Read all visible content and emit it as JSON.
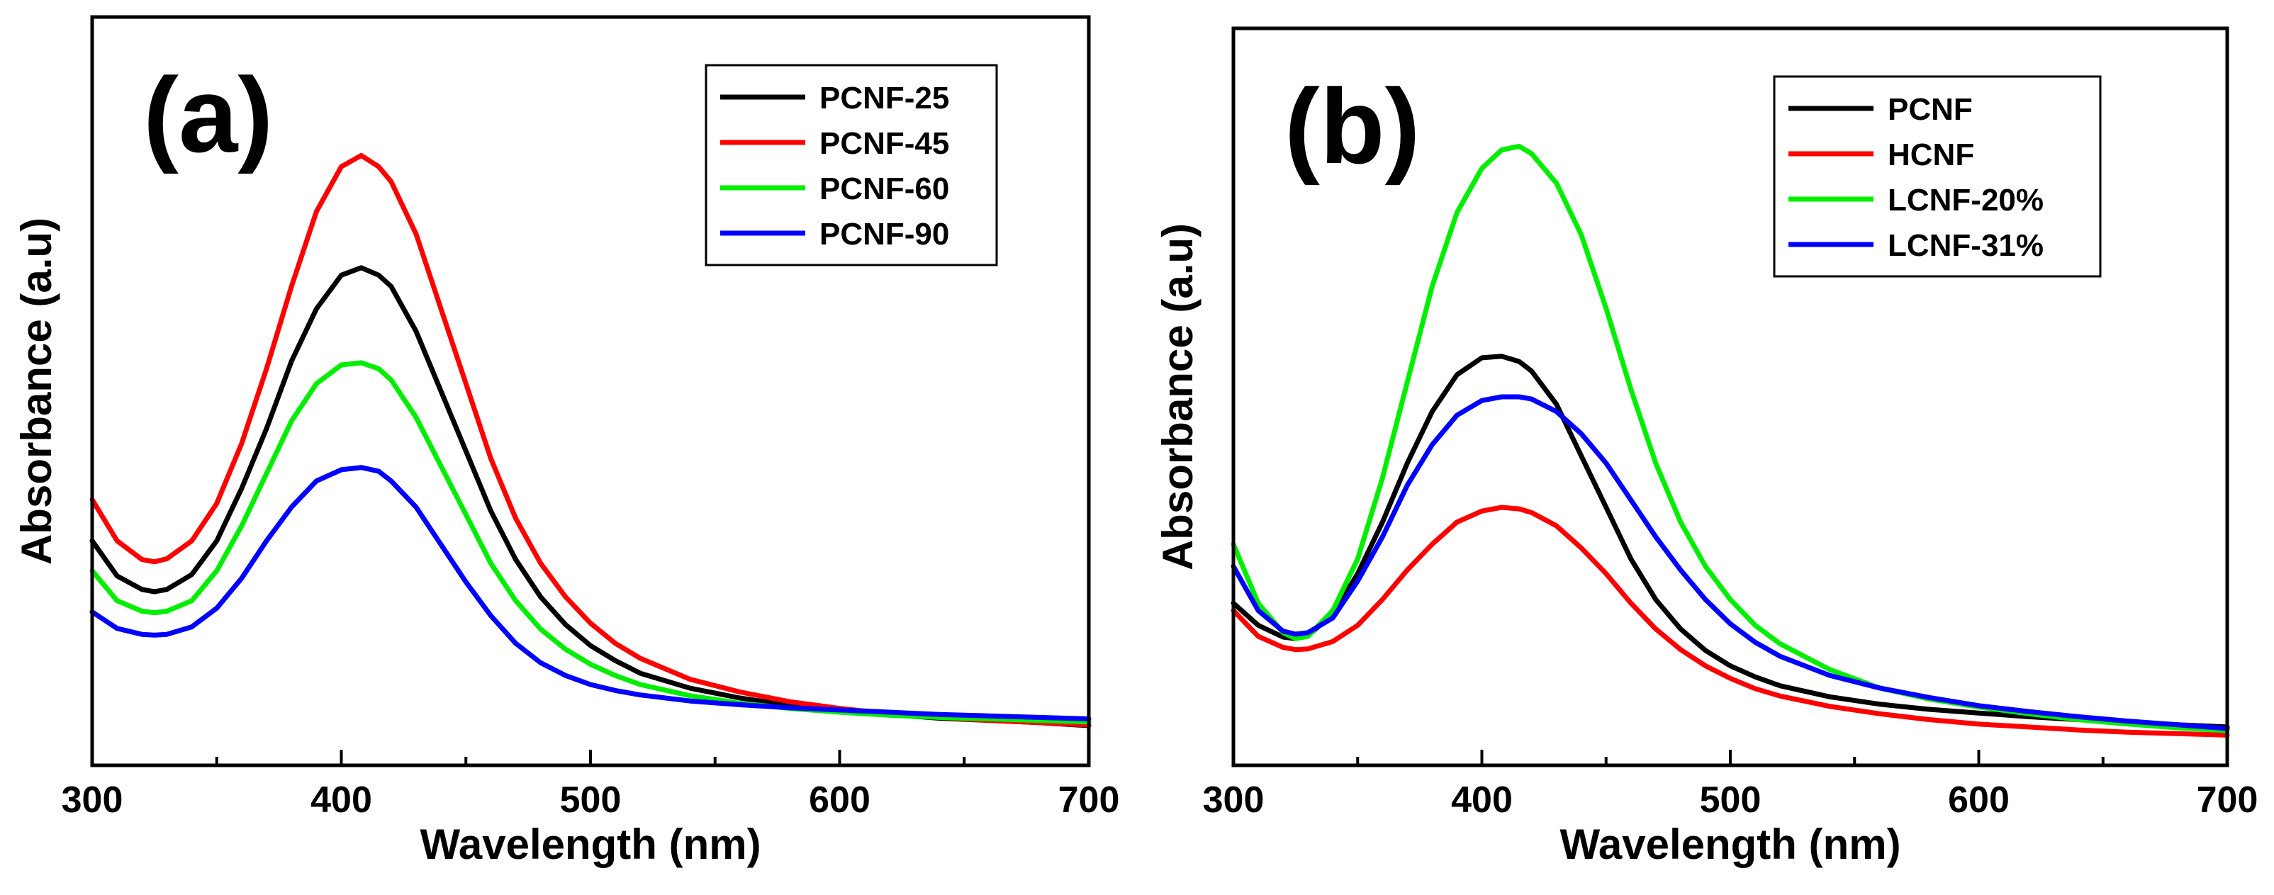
{
  "chart_data": [
    {
      "type": "line",
      "panel_label": "(a)",
      "xlabel": "Wavelength (nm)",
      "ylabel": "Absorbance (a.u)",
      "xlim": [
        300,
        700
      ],
      "ylim": [
        0,
        1
      ],
      "xticks": [
        300,
        400,
        500,
        600,
        700
      ],
      "y_tick_labels": false,
      "grid": false,
      "legend_position": "top-right",
      "x": [
        300,
        310,
        320,
        325,
        330,
        340,
        350,
        360,
        370,
        380,
        390,
        400,
        408,
        415,
        420,
        430,
        440,
        450,
        460,
        470,
        480,
        490,
        500,
        510,
        520,
        540,
        560,
        580,
        600,
        620,
        640,
        660,
        680,
        700
      ],
      "series": [
        {
          "name": "PCNF-25",
          "color": "#000000",
          "values": [
            0.3,
            0.253,
            0.235,
            0.232,
            0.235,
            0.255,
            0.3,
            0.37,
            0.45,
            0.54,
            0.61,
            0.655,
            0.665,
            0.655,
            0.64,
            0.58,
            0.5,
            0.42,
            0.34,
            0.275,
            0.225,
            0.188,
            0.16,
            0.14,
            0.123,
            0.103,
            0.09,
            0.08,
            0.073,
            0.068,
            0.063,
            0.06,
            0.057,
            0.053
          ]
        },
        {
          "name": "PCNF-45",
          "color": "#ff0000",
          "values": [
            0.355,
            0.3,
            0.275,
            0.272,
            0.276,
            0.3,
            0.35,
            0.43,
            0.53,
            0.64,
            0.74,
            0.8,
            0.815,
            0.8,
            0.78,
            0.71,
            0.61,
            0.51,
            0.41,
            0.33,
            0.27,
            0.225,
            0.19,
            0.163,
            0.143,
            0.115,
            0.098,
            0.085,
            0.076,
            0.069,
            0.064,
            0.06,
            0.057,
            0.054
          ]
        },
        {
          "name": "PCNF-60",
          "color": "#00ee00",
          "values": [
            0.26,
            0.22,
            0.206,
            0.204,
            0.206,
            0.22,
            0.26,
            0.32,
            0.39,
            0.46,
            0.51,
            0.535,
            0.538,
            0.53,
            0.515,
            0.465,
            0.4,
            0.335,
            0.27,
            0.22,
            0.182,
            0.155,
            0.135,
            0.12,
            0.108,
            0.093,
            0.083,
            0.076,
            0.071,
            0.067,
            0.064,
            0.062,
            0.06,
            0.058
          ]
        },
        {
          "name": "PCNF-90",
          "color": "#0000ff",
          "values": [
            0.205,
            0.183,
            0.175,
            0.174,
            0.175,
            0.185,
            0.21,
            0.25,
            0.3,
            0.345,
            0.38,
            0.395,
            0.398,
            0.393,
            0.38,
            0.345,
            0.295,
            0.245,
            0.2,
            0.163,
            0.137,
            0.12,
            0.108,
            0.1,
            0.094,
            0.086,
            0.081,
            0.077,
            0.074,
            0.071,
            0.068,
            0.066,
            0.064,
            0.062
          ]
        }
      ]
    },
    {
      "type": "line",
      "panel_label": "(b)",
      "xlabel": "Wavelength (nm)",
      "ylabel": "Absorbance (a.u)",
      "xlim": [
        300,
        700
      ],
      "ylim": [
        0,
        1
      ],
      "xticks": [
        300,
        400,
        500,
        600,
        700
      ],
      "y_tick_labels": false,
      "grid": false,
      "legend_position": "top-right",
      "x": [
        300,
        310,
        320,
        325,
        330,
        340,
        350,
        360,
        370,
        380,
        390,
        400,
        408,
        415,
        420,
        430,
        440,
        450,
        460,
        470,
        480,
        490,
        500,
        510,
        520,
        540,
        560,
        580,
        600,
        620,
        640,
        660,
        680,
        700
      ],
      "series": [
        {
          "name": "PCNF",
          "color": "#000000",
          "values": [
            0.22,
            0.19,
            0.174,
            0.172,
            0.176,
            0.205,
            0.26,
            0.33,
            0.41,
            0.48,
            0.53,
            0.553,
            0.555,
            0.548,
            0.535,
            0.49,
            0.42,
            0.35,
            0.28,
            0.225,
            0.185,
            0.156,
            0.135,
            0.12,
            0.108,
            0.093,
            0.083,
            0.076,
            0.071,
            0.066,
            0.062,
            0.058,
            0.055,
            0.052
          ]
        },
        {
          "name": "HCNF",
          "color": "#ff0000",
          "values": [
            0.21,
            0.175,
            0.16,
            0.157,
            0.158,
            0.168,
            0.19,
            0.225,
            0.265,
            0.3,
            0.33,
            0.345,
            0.35,
            0.348,
            0.343,
            0.325,
            0.295,
            0.26,
            0.22,
            0.185,
            0.157,
            0.135,
            0.118,
            0.104,
            0.094,
            0.08,
            0.07,
            0.062,
            0.056,
            0.052,
            0.048,
            0.045,
            0.043,
            0.041
          ]
        },
        {
          "name": "LCNF-20%",
          "color": "#00ee00",
          "values": [
            0.3,
            0.22,
            0.18,
            0.172,
            0.175,
            0.21,
            0.28,
            0.39,
            0.52,
            0.65,
            0.75,
            0.81,
            0.835,
            0.84,
            0.83,
            0.79,
            0.72,
            0.62,
            0.51,
            0.41,
            0.33,
            0.27,
            0.225,
            0.19,
            0.165,
            0.13,
            0.105,
            0.09,
            0.079,
            0.07,
            0.062,
            0.056,
            0.051,
            0.047
          ]
        },
        {
          "name": "LCNF-31%",
          "color": "#0000ff",
          "values": [
            0.27,
            0.21,
            0.182,
            0.178,
            0.18,
            0.2,
            0.25,
            0.31,
            0.38,
            0.435,
            0.475,
            0.495,
            0.5,
            0.5,
            0.497,
            0.48,
            0.45,
            0.41,
            0.36,
            0.31,
            0.265,
            0.225,
            0.192,
            0.167,
            0.148,
            0.122,
            0.105,
            0.092,
            0.081,
            0.073,
            0.066,
            0.06,
            0.055,
            0.05
          ]
        }
      ]
    }
  ]
}
